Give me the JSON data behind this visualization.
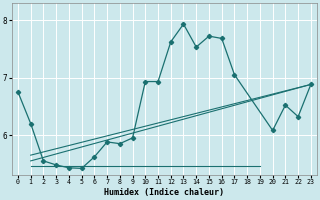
{
  "xlabel": "Humidex (Indice chaleur)",
  "xlim": [
    -0.5,
    23.5
  ],
  "ylim": [
    5.3,
    8.3
  ],
  "yticks": [
    6,
    7,
    8
  ],
  "xticks": [
    0,
    1,
    2,
    3,
    4,
    5,
    6,
    7,
    8,
    9,
    10,
    11,
    12,
    13,
    14,
    15,
    16,
    17,
    18,
    19,
    20,
    21,
    22,
    23
  ],
  "bg_color": "#cce8ec",
  "grid_color": "#ffffff",
  "line_color": "#1a7070",
  "curve_x": [
    0,
    1,
    2,
    3,
    4,
    5,
    6,
    7,
    8,
    9,
    10,
    11,
    12,
    13,
    14,
    15,
    16,
    17,
    20,
    21,
    22,
    23
  ],
  "curve_y": [
    6.75,
    6.2,
    5.55,
    5.48,
    5.43,
    5.42,
    5.62,
    5.88,
    5.85,
    5.95,
    6.93,
    6.93,
    7.62,
    7.93,
    7.53,
    7.72,
    7.68,
    7.05,
    6.08,
    6.52,
    6.32,
    6.88
  ],
  "line1_x": [
    1,
    23
  ],
  "line1_y": [
    5.55,
    6.88
  ],
  "line2_x": [
    1,
    23
  ],
  "line2_y": [
    5.55,
    6.88
  ],
  "line3_x": [
    1,
    18
  ],
  "line3_y": [
    5.55,
    5.47
  ],
  "line4_x": [
    1,
    23
  ],
  "line4_y": [
    5.72,
    6.88
  ]
}
